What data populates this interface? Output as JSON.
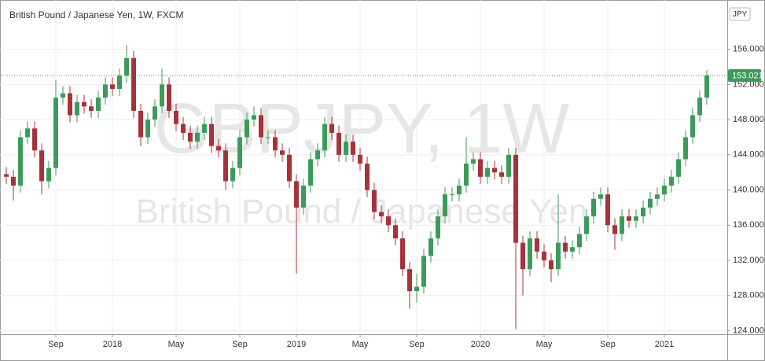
{
  "chart_data": {
    "type": "candlestick",
    "title": "British Pound / Japanese Yen, 1W, FXCM",
    "currency": "JPY",
    "watermark": [
      "GBPJPY, 1W",
      "British Pound / Japanese Yen"
    ],
    "categories": [
      null,
      null,
      null,
      null,
      null,
      null,
      null,
      "Sep",
      null,
      null,
      null,
      null,
      null,
      null,
      null,
      "2018",
      null,
      null,
      null,
      null,
      null,
      null,
      null,
      null,
      "May",
      null,
      null,
      null,
      null,
      null,
      null,
      null,
      null,
      "Sep",
      null,
      null,
      null,
      null,
      null,
      null,
      null,
      "2019",
      null,
      null,
      null,
      null,
      null,
      null,
      null,
      null,
      "May",
      null,
      null,
      null,
      null,
      null,
      null,
      null,
      "Sep",
      null,
      null,
      null,
      null,
      null,
      null,
      null,
      null,
      "2020",
      null,
      null,
      null,
      null,
      null,
      null,
      null,
      null,
      "May",
      null,
      null,
      null,
      null,
      null,
      null,
      null,
      null,
      "Sep",
      null,
      null,
      null,
      null,
      null,
      null,
      null,
      "2021",
      null,
      null,
      null,
      null,
      null,
      null
    ],
    "open": [
      141.8,
      141.5,
      140.5,
      146,
      147,
      144.5,
      141,
      142.5,
      150.5,
      151,
      148.5,
      150,
      149.5,
      149,
      150.5,
      152,
      151.5,
      153,
      155,
      149,
      146,
      148,
      149.5,
      152,
      149,
      147.5,
      146.5,
      145.5,
      146.5,
      147.5,
      145,
      144.5,
      141,
      142.5,
      146,
      148,
      148.5,
      146,
      146,
      144.5,
      144,
      141,
      138,
      140.5,
      143.5,
      144.5,
      147.5,
      146.5,
      144,
      145.5,
      144,
      143,
      140,
      137.5,
      137,
      136,
      134.5,
      131,
      128.5,
      129,
      132.5,
      134.5,
      137,
      139.5,
      139.5,
      140.5,
      143,
      143.5,
      141.5,
      142.5,
      142,
      141.5,
      144,
      134,
      131,
      134.5,
      133,
      132,
      131,
      134,
      133,
      133.5,
      135,
      137,
      139,
      139.5,
      136,
      135,
      137,
      136.5,
      137,
      138,
      139,
      139.5,
      140.5,
      141.5,
      143.5,
      146,
      148.5,
      150.5
    ],
    "high": [
      142.6,
      142.3,
      146.8,
      147.8,
      147.8,
      145.3,
      143.3,
      152.5,
      151.8,
      151.8,
      150.8,
      150.8,
      150.3,
      151.3,
      152.8,
      152.8,
      153.8,
      156.5,
      155.8,
      149.8,
      148.8,
      150.3,
      153.8,
      152.8,
      149.8,
      148.3,
      147.3,
      147.3,
      148.3,
      148.3,
      145.8,
      145.3,
      143.3,
      146.8,
      148.8,
      149.5,
      149.3,
      146.8,
      146.8,
      145.3,
      144.8,
      141.8,
      141.3,
      144.3,
      145.3,
      148.3,
      148.3,
      147.3,
      146.3,
      146.3,
      144.8,
      143.8,
      140.8,
      138.3,
      137.8,
      136.8,
      135.3,
      131.8,
      130.5,
      133.3,
      135.3,
      137.8,
      140.3,
      140.3,
      141.3,
      146,
      144.3,
      144.3,
      143.3,
      143.3,
      142.8,
      144.8,
      144.8,
      134.8,
      135.3,
      135.3,
      133.8,
      132.8,
      139.5,
      134.8,
      134.3,
      135.8,
      137.8,
      139.8,
      140.3,
      140.3,
      136.8,
      137.8,
      137.8,
      137.8,
      138.8,
      139.8,
      140.3,
      141.3,
      142.3,
      144.3,
      146.8,
      149.3,
      151.3,
      153.6
    ],
    "low": [
      140.7,
      138.8,
      139.7,
      145.2,
      143.7,
      139.5,
      140.2,
      141.7,
      149.7,
      147.7,
      147.7,
      148.7,
      148.2,
      148.2,
      149.7,
      150.7,
      150.7,
      152.2,
      148.2,
      145,
      145.2,
      147.2,
      148.7,
      148.2,
      146.7,
      145.7,
      144.7,
      144.7,
      145.7,
      144.2,
      143.7,
      140,
      140.2,
      141.7,
      145.2,
      147.2,
      145.2,
      145.2,
      143.7,
      143.2,
      140.2,
      130.5,
      137.2,
      139.7,
      142.7,
      143.7,
      145.7,
      143.2,
      143.2,
      143.2,
      142.2,
      139.2,
      136.7,
      136.2,
      135.2,
      133.7,
      130.2,
      126.5,
      127.2,
      128.2,
      131.7,
      133.7,
      136.2,
      138.7,
      138.7,
      139.7,
      142.2,
      140.7,
      140.7,
      141.2,
      140.7,
      140.7,
      124.2,
      128,
      130.2,
      132.2,
      131.2,
      129.5,
      130.2,
      132.2,
      132.2,
      132.7,
      134.2,
      136.2,
      138.2,
      135.2,
      133.2,
      134.2,
      135.7,
      135.7,
      136.2,
      137.2,
      138.2,
      138.7,
      139.7,
      140.7,
      142.7,
      145.2,
      147.7,
      149.7
    ],
    "close": [
      141.5,
      140.5,
      146,
      147,
      144.5,
      141,
      142.5,
      150.5,
      151,
      148.5,
      150,
      149.5,
      149,
      150.5,
      152,
      151.5,
      153,
      155,
      149,
      146,
      148,
      149.5,
      152,
      149,
      147.5,
      146.5,
      145.5,
      146.5,
      147.5,
      145,
      144.5,
      141,
      142.5,
      146,
      148,
      148.5,
      146,
      146,
      144.5,
      144,
      141,
      138,
      140.5,
      143.5,
      144.5,
      147.5,
      146.5,
      144,
      145.5,
      144,
      143,
      140,
      137.5,
      137,
      136,
      134.5,
      131,
      128.5,
      129,
      132.5,
      134.5,
      137,
      139.5,
      139.5,
      140.5,
      143,
      143.5,
      141.5,
      142.5,
      142,
      141.5,
      144,
      134,
      131,
      134.5,
      133,
      132,
      131,
      134,
      133,
      133.5,
      135,
      137,
      139,
      139.5,
      136,
      135,
      137,
      136.5,
      137,
      138,
      139,
      139.5,
      140.5,
      141.5,
      143.5,
      146,
      148.5,
      150.5,
      153.021
    ],
    "up_color": "#3d9a5b",
    "down_color": "#a8323a",
    "ylim": [
      123.6,
      161.6
    ],
    "yticks": [
      {
        "value": 124,
        "label": "124.000"
      },
      {
        "value": 128,
        "label": "128.000"
      },
      {
        "value": 132,
        "label": "132.000"
      },
      {
        "value": 136,
        "label": "136.000"
      },
      {
        "value": 140,
        "label": "140.000"
      },
      {
        "value": 144,
        "label": "144.000"
      },
      {
        "value": 148,
        "label": "148.000"
      },
      {
        "value": 152,
        "label": "152.000"
      },
      {
        "value": 156,
        "label": "156.000"
      }
    ],
    "grid": true
  }
}
